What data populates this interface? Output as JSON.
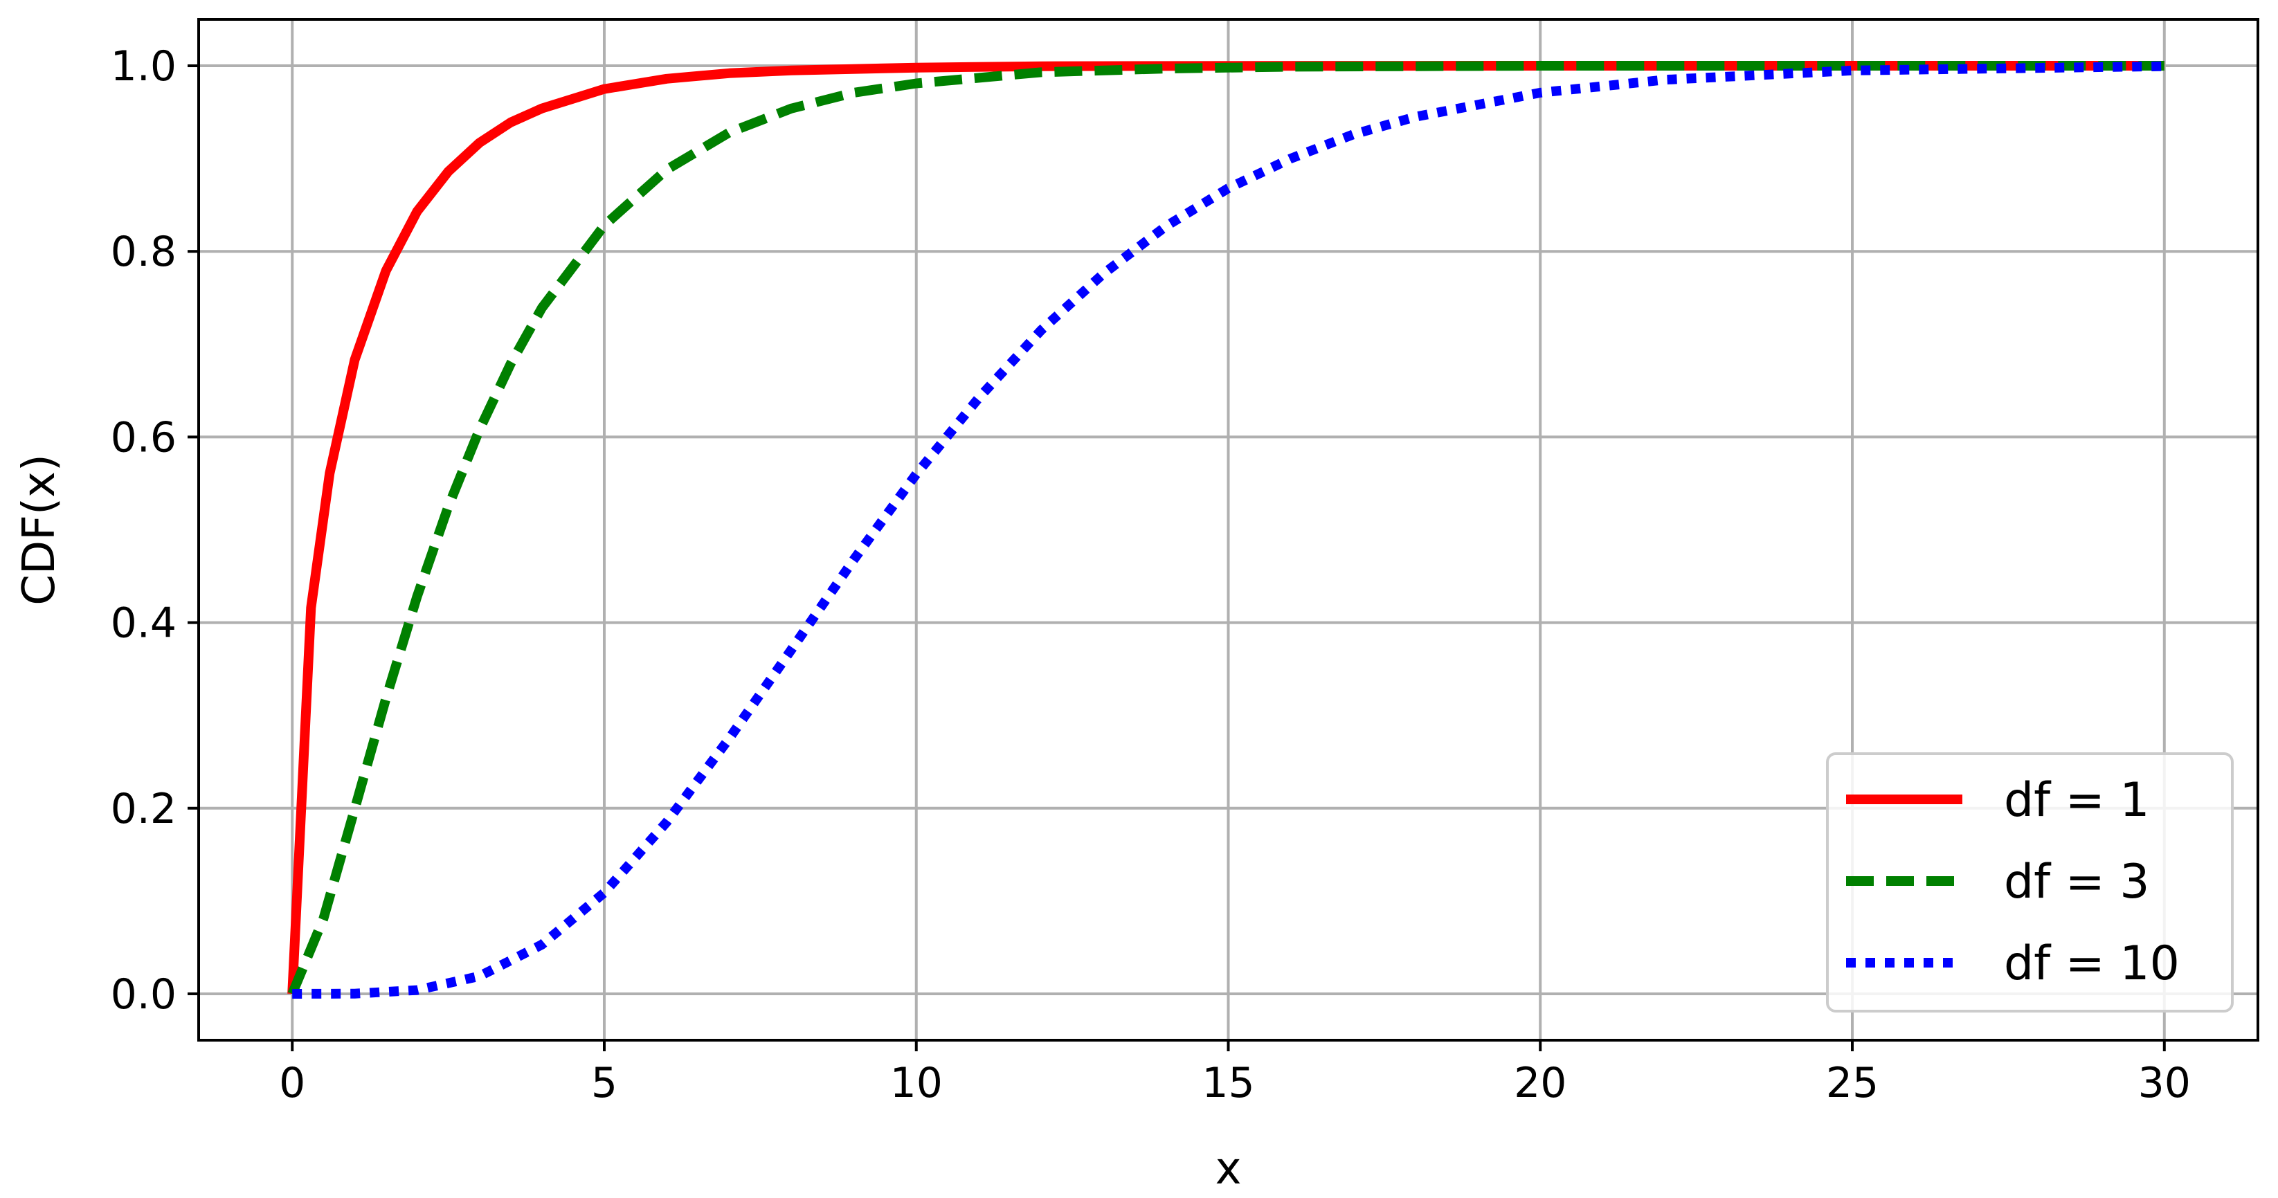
{
  "chart_data": {
    "type": "line",
    "title": "",
    "xlabel": "x",
    "ylabel": "CDF(x)",
    "xlim": [
      -1.5,
      31.5
    ],
    "ylim": [
      -0.05,
      1.05
    ],
    "xticks": [
      0,
      5,
      10,
      15,
      20,
      25,
      30
    ],
    "yticks": [
      0.0,
      0.2,
      0.4,
      0.6,
      0.8,
      1.0
    ],
    "grid": true,
    "legend_position": "lower-right",
    "series": [
      {
        "name": "df = 1",
        "color": "#ff0000",
        "style": "solid",
        "x": [
          0,
          0.3,
          0.6,
          1,
          1.5,
          2,
          2.5,
          3,
          3.5,
          4,
          5,
          6,
          7,
          8,
          10,
          12,
          15,
          20,
          25,
          30
        ],
        "y": [
          0,
          0.416,
          0.561,
          0.683,
          0.779,
          0.843,
          0.886,
          0.917,
          0.939,
          0.954,
          0.975,
          0.986,
          0.992,
          0.995,
          0.998,
          0.9995,
          0.9999,
          1.0,
          1.0,
          1.0
        ]
      },
      {
        "name": "df = 3",
        "color": "#008000",
        "style": "dashed",
        "x": [
          0,
          0.5,
          1,
          1.5,
          2,
          2.5,
          3,
          3.5,
          4,
          5,
          6,
          7,
          8,
          9,
          10,
          12,
          14,
          16,
          20,
          25,
          30
        ],
        "y": [
          0,
          0.081,
          0.199,
          0.318,
          0.428,
          0.525,
          0.608,
          0.679,
          0.739,
          0.828,
          0.888,
          0.928,
          0.954,
          0.971,
          0.981,
          0.993,
          0.997,
          0.999,
          1.0,
          1.0,
          1.0
        ]
      },
      {
        "name": "df = 10",
        "color": "#0000ff",
        "style": "dotted",
        "x": [
          0,
          1,
          2,
          3,
          4,
          5,
          6,
          7,
          8,
          9,
          10,
          11,
          12,
          13,
          14,
          15,
          16,
          17,
          18,
          20,
          22,
          25,
          30
        ],
        "y": [
          0,
          0.0002,
          0.004,
          0.019,
          0.053,
          0.109,
          0.185,
          0.275,
          0.371,
          0.468,
          0.56,
          0.642,
          0.715,
          0.776,
          0.827,
          0.868,
          0.9,
          0.926,
          0.945,
          0.971,
          0.985,
          0.995,
          0.9995
        ]
      }
    ]
  }
}
